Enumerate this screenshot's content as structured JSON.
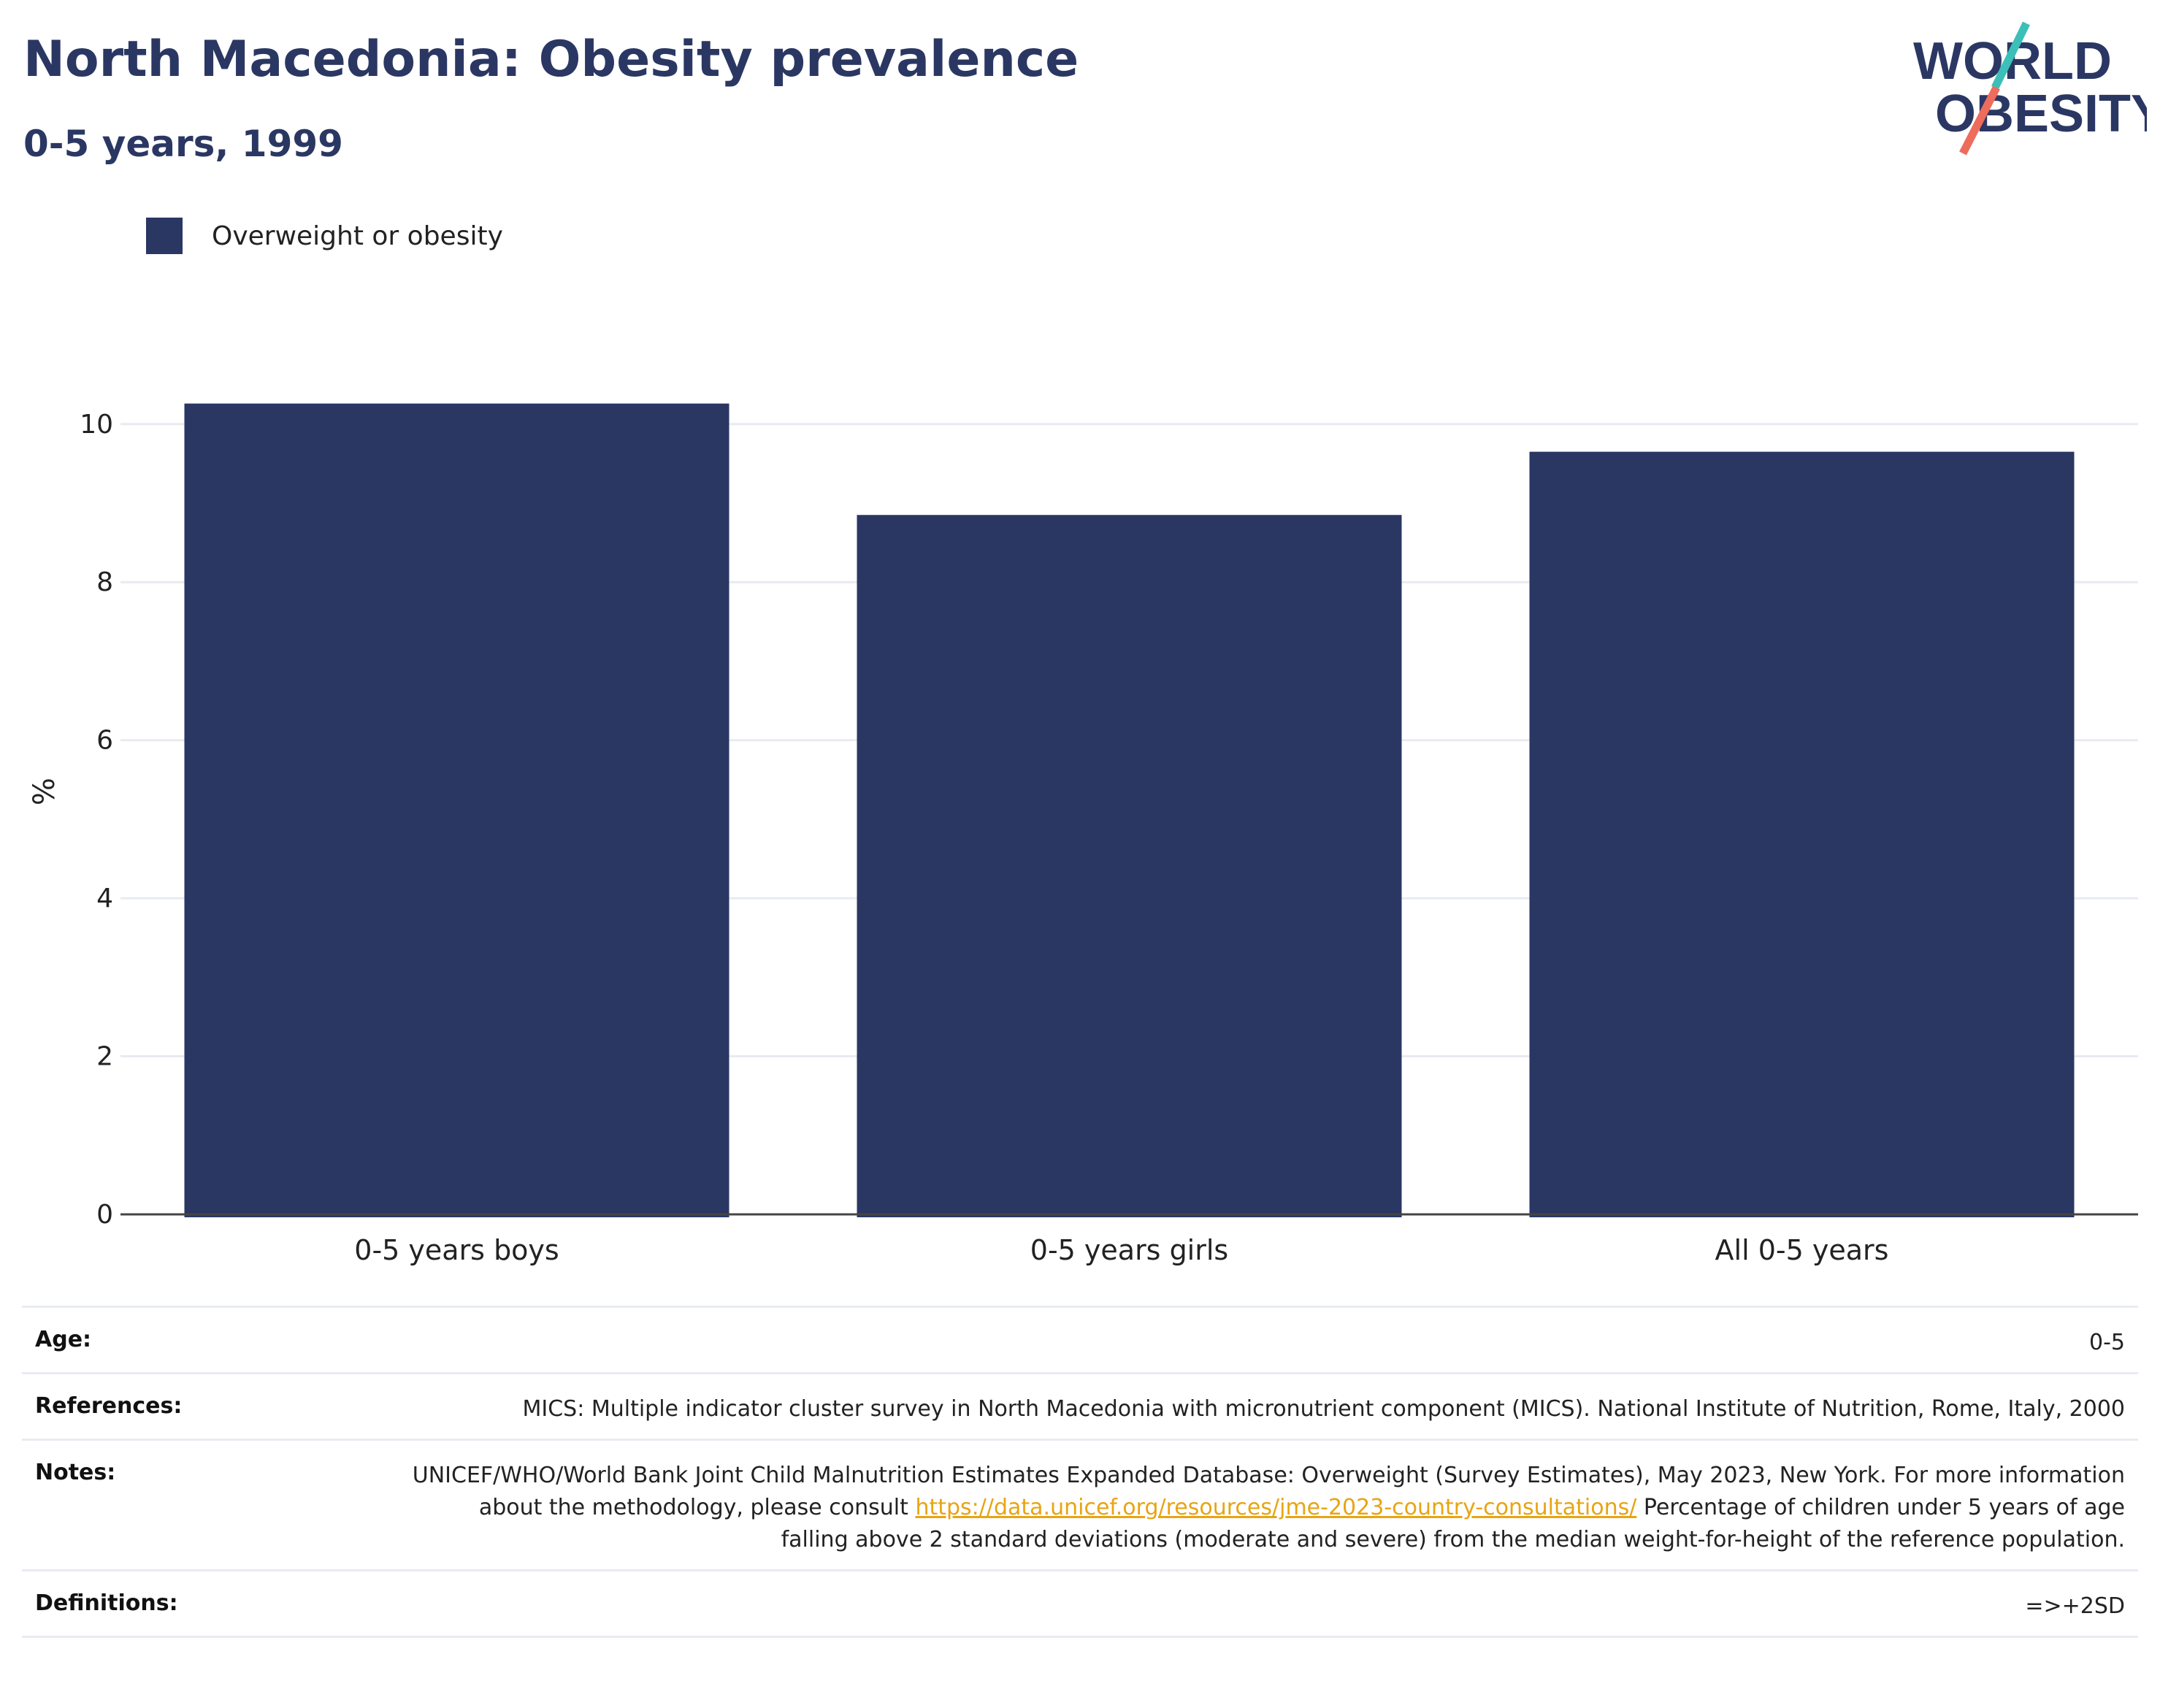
{
  "header": {
    "title": "North Macedonia: Obesity prevalence",
    "subtitle": "0-5 years, 1999"
  },
  "logo": {
    "line1": "WORLD",
    "line2": "OBESITY",
    "colors": {
      "text": "#2b3763",
      "teal": "#3bbfb8",
      "coral": "#ee6c5b"
    }
  },
  "colors": {
    "bar": "#2a3763",
    "grid": "#e8ebf2",
    "axis": "#444444",
    "link": "#e8a412"
  },
  "chart_data": {
    "type": "bar",
    "categories": [
      "0-5 years boys",
      "0-5 years girls",
      "All 0-5 years"
    ],
    "series": [
      {
        "name": "Overweight or obesity",
        "values": [
          10.26,
          8.85,
          9.65
        ]
      }
    ],
    "ylabel": "%",
    "xlabel": "",
    "ylim": [
      0,
      10.7
    ],
    "yticks": [
      0,
      2,
      4,
      6,
      8,
      10
    ],
    "grid": true,
    "legend_position": "top-left"
  },
  "details": [
    {
      "key": "Age:",
      "value": "0-5"
    },
    {
      "key": "References:",
      "value": "MICS: Multiple indicator cluster survey in North Macedonia with micronutrient component (MICS). National Institute of Nutrition, Rome, Italy, 2000"
    },
    {
      "key": "Notes:",
      "value_pre": "UNICEF/WHO/World Bank Joint Child Malnutrition Estimates Expanded Database: Overweight (Survey Estimates), May 2023, New York. For more information about the methodology, please consult ",
      "link": "https://data.unicef.org/resources/jme-2023-country-consultations/",
      "value_post": " Percentage of children under 5 years of age falling above 2 standard deviations (moderate and severe) from the median weight-for-height of the reference population."
    },
    {
      "key": "Definitions:",
      "value": "=>+2SD"
    }
  ]
}
